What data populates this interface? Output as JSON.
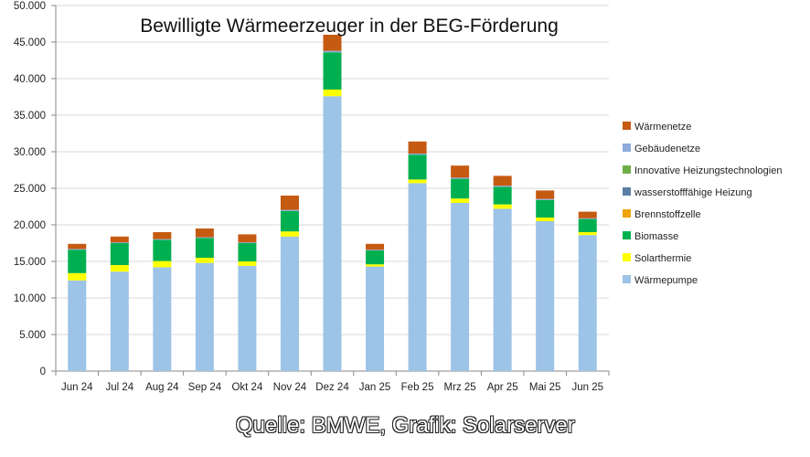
{
  "chart_data": {
    "type": "bar",
    "stacked": true,
    "title": "Bewilligte Wärmeerzeuger in der BEG-Förderung",
    "xlabel": "",
    "ylabel": "",
    "ylim": [
      0,
      50000
    ],
    "y_ticks": [
      "0",
      "5.000",
      "10.000",
      "15.000",
      "20.000",
      "25.000",
      "30.000",
      "35.000",
      "40.000",
      "45.000",
      "50.000"
    ],
    "y_tick_values": [
      0,
      5000,
      10000,
      15000,
      20000,
      25000,
      30000,
      35000,
      40000,
      45000,
      50000
    ],
    "grid": true,
    "legend_position": "right",
    "categories": [
      "Jun 24",
      "Jul 24",
      "Aug 24",
      "Sep 24",
      "Okt 24",
      "Nov 24",
      "Dez 24",
      "Jan 25",
      "Feb 25",
      "Mrz 25",
      "Apr 25",
      "Mai 25",
      "Jun 25"
    ],
    "series": [
      {
        "name": "Wärmepumpe",
        "color": "#9dc3e6",
        "values": [
          12400,
          13600,
          14200,
          14800,
          14400,
          18400,
          37600,
          14300,
          25700,
          23000,
          22200,
          20500,
          18600
        ]
      },
      {
        "name": "Solarthermie",
        "color": "#ffff00",
        "values": [
          1000,
          900,
          850,
          700,
          600,
          700,
          900,
          300,
          500,
          600,
          600,
          500,
          400
        ]
      },
      {
        "name": "Biomasse",
        "color": "#00b050",
        "values": [
          3200,
          3000,
          2900,
          2700,
          2500,
          2800,
          5100,
          1900,
          3400,
          2700,
          2400,
          2400,
          1800
        ]
      },
      {
        "name": "Brennstoffzelle",
        "color": "#f0a30a",
        "values": [
          0,
          0,
          0,
          0,
          0,
          0,
          0,
          0,
          0,
          0,
          0,
          0,
          0
        ]
      },
      {
        "name": "wasserstofffähige Heizung",
        "color": "#5b7fa6",
        "values": [
          0,
          0,
          0,
          0,
          0,
          0,
          0,
          0,
          0,
          0,
          0,
          0,
          0
        ]
      },
      {
        "name": "Innovative Heizungstechnologien",
        "color": "#70ad47",
        "values": [
          0,
          0,
          0,
          0,
          0,
          0,
          0,
          0,
          0,
          0,
          0,
          0,
          0
        ]
      },
      {
        "name": "Gebäudenetze",
        "color": "#8faadc",
        "values": [
          100,
          100,
          100,
          100,
          100,
          150,
          200,
          100,
          150,
          150,
          150,
          150,
          100
        ]
      },
      {
        "name": "Wärmenetze",
        "color": "#c55a11",
        "values": [
          700,
          800,
          950,
          1200,
          1100,
          1950,
          2200,
          800,
          1650,
          1650,
          1350,
          1150,
          900
        ]
      }
    ],
    "source": "Quelle: BMWE, Grafik: Solarserver"
  }
}
